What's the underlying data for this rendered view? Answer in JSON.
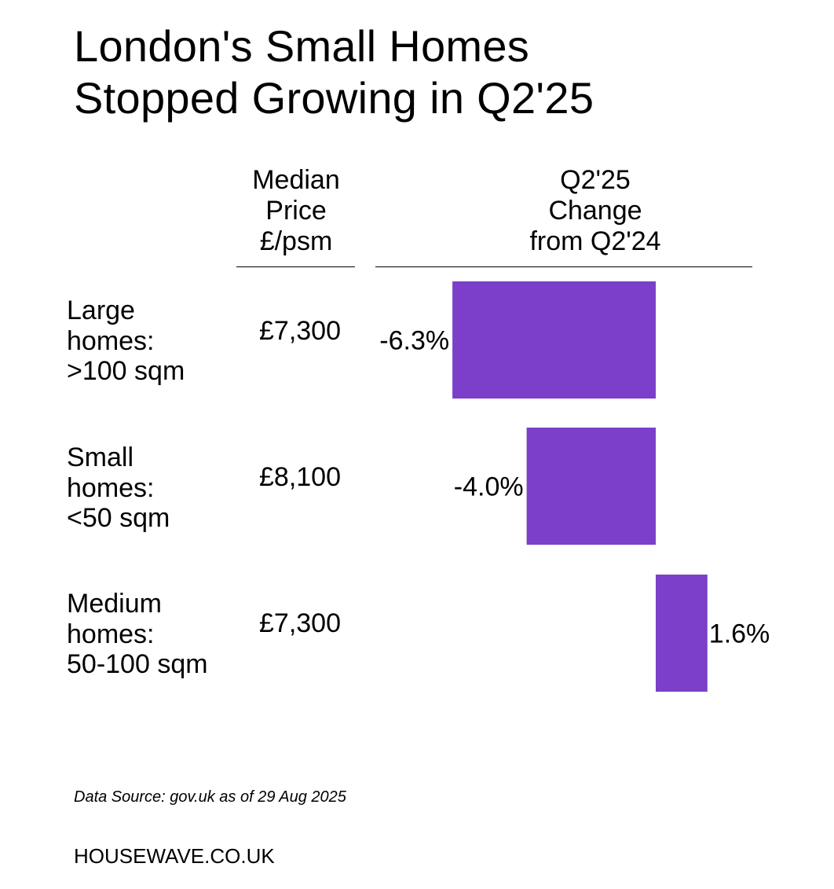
{
  "title": {
    "line1": "London's Small Homes",
    "line2": "Stopped Growing in Q2'25"
  },
  "headers": {
    "price": [
      "Median",
      "Price",
      "£/psm"
    ],
    "change": [
      "Q2'25",
      "Change",
      "from Q2'24"
    ]
  },
  "colors": {
    "bar": "#7b3fc9",
    "text": "#000000",
    "background": "#ffffff"
  },
  "rows": [
    {
      "label": [
        "Large",
        "homes:",
        ">100 sqm"
      ],
      "price": "£7,300",
      "change_label": "-6.3%"
    },
    {
      "label": [
        "Small",
        "homes:",
        "<50 sqm"
      ],
      "price": "£8,100",
      "change_label": "-4.0%"
    },
    {
      "label": [
        "Medium",
        "homes:",
        "50-100 sqm"
      ],
      "price": "£7,300",
      "change_label": "1.6%"
    }
  ],
  "chart_data": {
    "type": "bar",
    "orientation": "horizontal",
    "categories": [
      "Large homes: >100 sqm",
      "Small homes: <50 sqm",
      "Medium homes: 50-100 sqm"
    ],
    "values": [
      -6.3,
      -4.0,
      1.6
    ],
    "unit": "%",
    "xlabel": "Q2'25 Change from Q2'24",
    "grid": false,
    "legend": "none"
  },
  "footer": {
    "source": "Data Source: gov.uk as of 29 Aug 2025",
    "brand": "HOUSEWAVE.CO.UK"
  }
}
